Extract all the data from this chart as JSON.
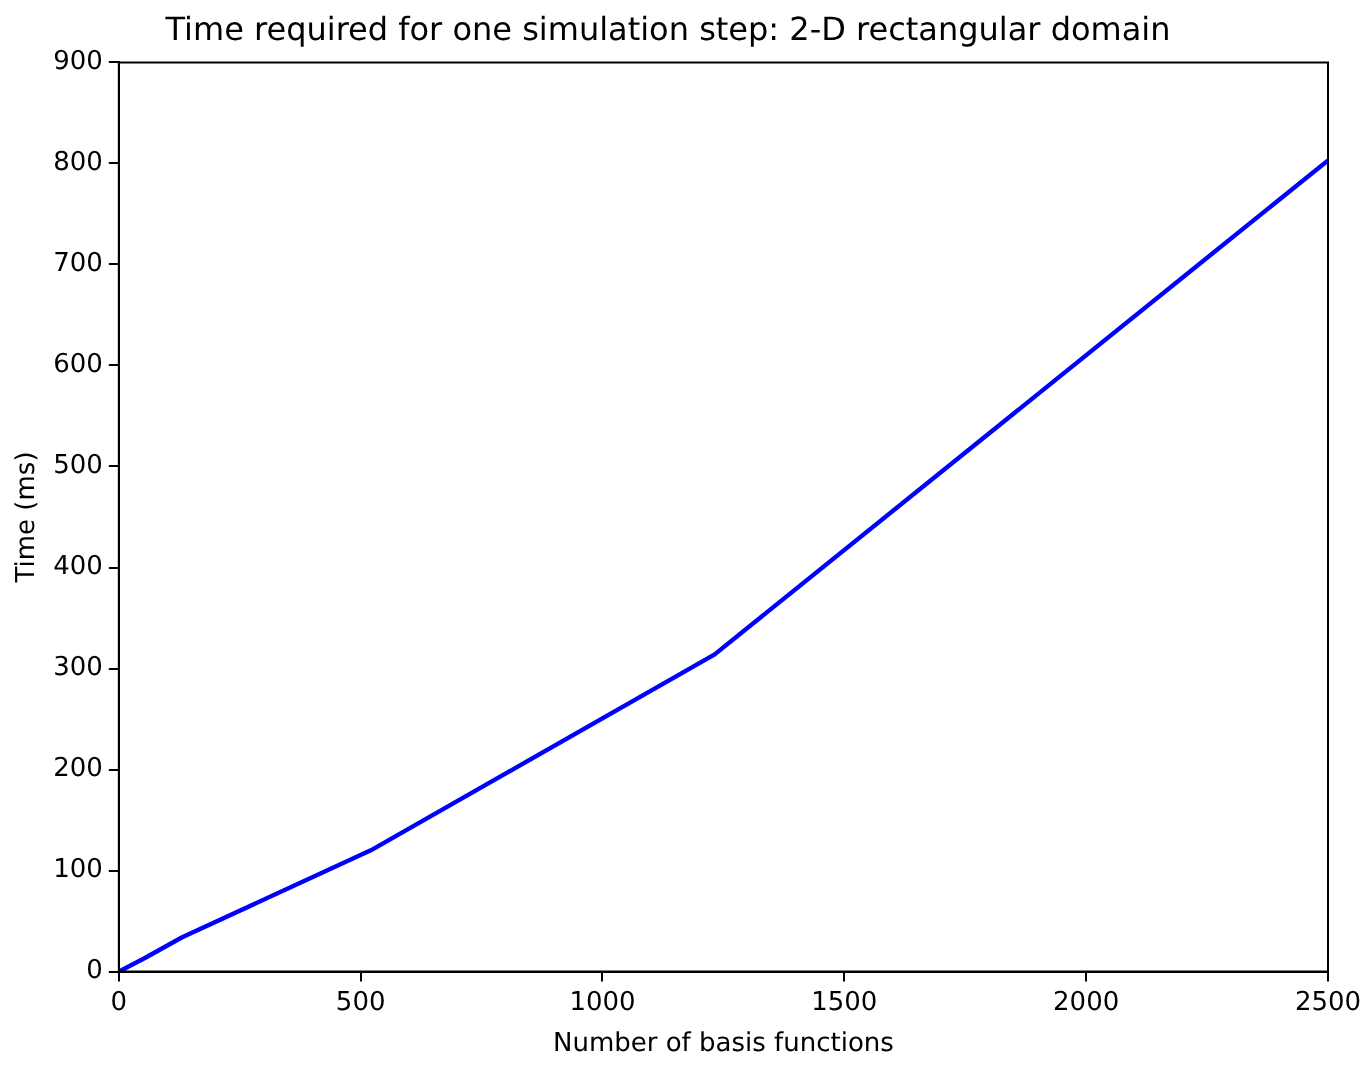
{
  "chart_data": {
    "type": "line",
    "title": "Time required for one simulation step: 2-D rectangular domain",
    "xlabel": "Number of basis functions",
    "ylabel": "Time (ms)",
    "series": [
      {
        "color": "#0000ff",
        "x": [
          0,
          52,
          131,
          521,
          1232,
          2500
        ],
        "values": [
          0,
          13,
          34,
          120,
          314,
          803
        ]
      }
    ],
    "xlim": [
      0,
      2500
    ],
    "xticks": [
      0,
      500,
      1000,
      1500,
      2000,
      2500
    ],
    "ylim": [
      0,
      900
    ],
    "yticks": [
      0,
      100,
      200,
      300,
      400,
      500,
      600,
      700,
      800,
      900
    ],
    "grid": false,
    "legend": false,
    "marker": "none",
    "line_style": "solid"
  }
}
